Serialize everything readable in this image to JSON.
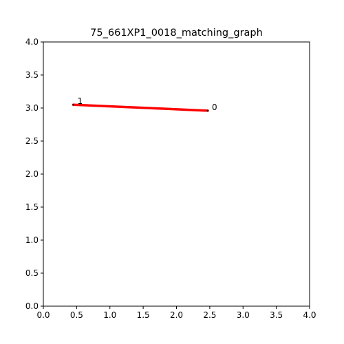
{
  "chart_data": {
    "type": "line",
    "title": "75_661XP1_0018_matching_graph",
    "xlabel": "",
    "ylabel": "",
    "xlim": [
      0.0,
      4.0
    ],
    "ylim": [
      0.0,
      4.0
    ],
    "xticks": [
      "0.0",
      "0.5",
      "1.0",
      "1.5",
      "2.0",
      "2.5",
      "3.0",
      "3.5",
      "4.0"
    ],
    "yticks": [
      "0.0",
      "0.5",
      "1.0",
      "1.5",
      "2.0",
      "2.5",
      "3.0",
      "3.5",
      "4.0"
    ],
    "grid": false,
    "nodes": [
      {
        "label": "0",
        "x": 2.47,
        "y": 2.96
      },
      {
        "label": "1",
        "x": 0.45,
        "y": 3.05
      }
    ],
    "edges": [
      {
        "from": "0",
        "to": "1",
        "color": "#ff0000"
      }
    ]
  }
}
